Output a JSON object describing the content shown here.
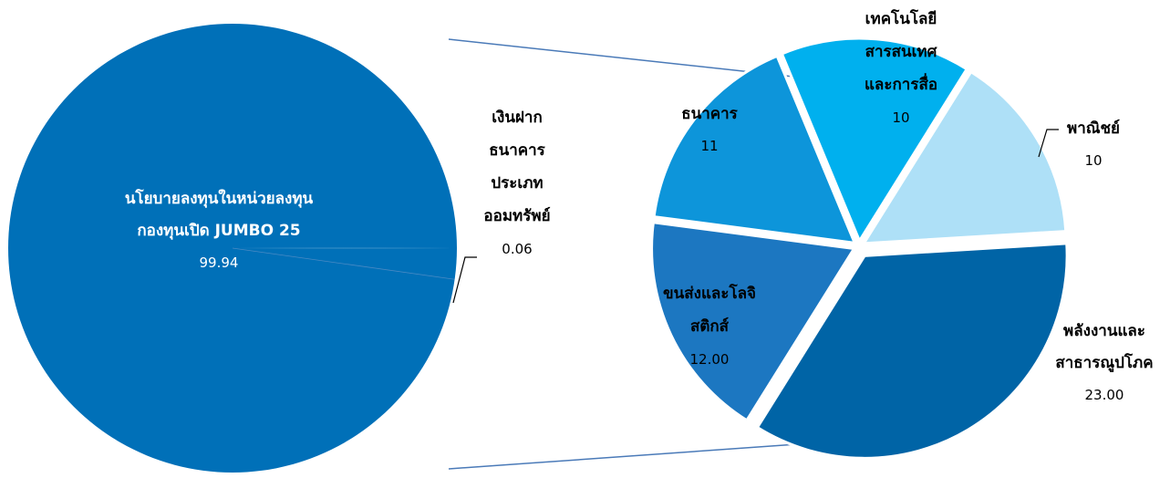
{
  "chart_data": [
    {
      "type": "pie",
      "slices": [
        {
          "label_lines": [
            "นโยบายลงทุนในหน่วยลงทุน",
            "กองทุนเปิด JUMBO 25"
          ],
          "value": 99.94,
          "value_label": "99.94",
          "color": "#0070b8"
        },
        {
          "label_lines": [
            "เงินฝาก",
            "ธนาคาร",
            "ประเภท",
            "ออมทรัพย์"
          ],
          "value": 0.06,
          "value_label": "0.06",
          "color": "#0070b8"
        }
      ]
    },
    {
      "type": "pie",
      "slices": [
        {
          "label_lines": [
            "พาณิชย์"
          ],
          "value": 10,
          "value_label": "10",
          "color": "#aee0f7"
        },
        {
          "label_lines": [
            "พลังงานและ",
            "สาธารณูปโภค"
          ],
          "value": 23.0,
          "value_label": "23.00",
          "color": "#0064a6"
        },
        {
          "label_lines": [
            "ขนส่งและโลจิ",
            "สติกส์"
          ],
          "value": 12.0,
          "value_label": "12.00",
          "color": "#1c77c1"
        },
        {
          "label_lines": [
            "ธนาคาร"
          ],
          "value": 11,
          "value_label": "11",
          "color": "#0d95da"
        },
        {
          "label_lines": [
            "เทคโนโลยี",
            "สารสนเทศ",
            "และการสื่อ"
          ],
          "value": 10,
          "value_label": "10",
          "color": "#00b0ee"
        }
      ]
    }
  ]
}
